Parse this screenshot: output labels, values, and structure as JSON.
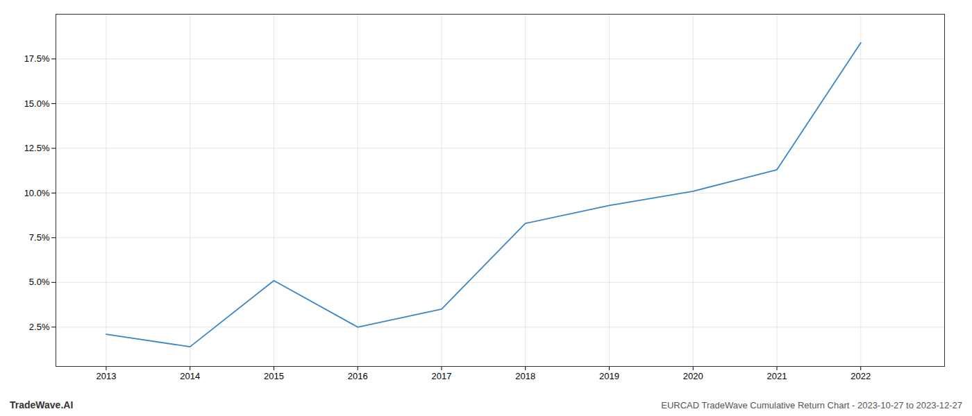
{
  "chart_data": {
    "type": "line",
    "title": "EURCAD TradeWave Cumulative Return Chart - 2023-10-27 to 2023-12-27",
    "annotations": [
      "TradeWave.AI"
    ],
    "x": [
      2013,
      2014,
      2015,
      2016,
      2017,
      2018,
      2019,
      2020,
      2021,
      2022
    ],
    "values": [
      2.1,
      1.4,
      5.1,
      2.5,
      3.5,
      8.3,
      9.3,
      10.1,
      11.3,
      18.4
    ],
    "color": "#3a86c8",
    "xlim": [
      2012.4,
      2023.0
    ],
    "xticks": [
      2013,
      2014,
      2015,
      2016,
      2017,
      2018,
      2019,
      2020,
      2021,
      2022
    ],
    "ylim": [
      0.3,
      20.0
    ],
    "yticks": [
      {
        "value": 2.5,
        "label": "2.5%"
      },
      {
        "value": 5.0,
        "label": "5.0%"
      },
      {
        "value": 7.5,
        "label": "7.5%"
      },
      {
        "value": 10.0,
        "label": "10.0%"
      },
      {
        "value": 12.5,
        "label": "12.5%"
      },
      {
        "value": 15.0,
        "label": "15.0%"
      },
      {
        "value": 17.5,
        "label": "17.5%"
      }
    ],
    "grid": true
  }
}
